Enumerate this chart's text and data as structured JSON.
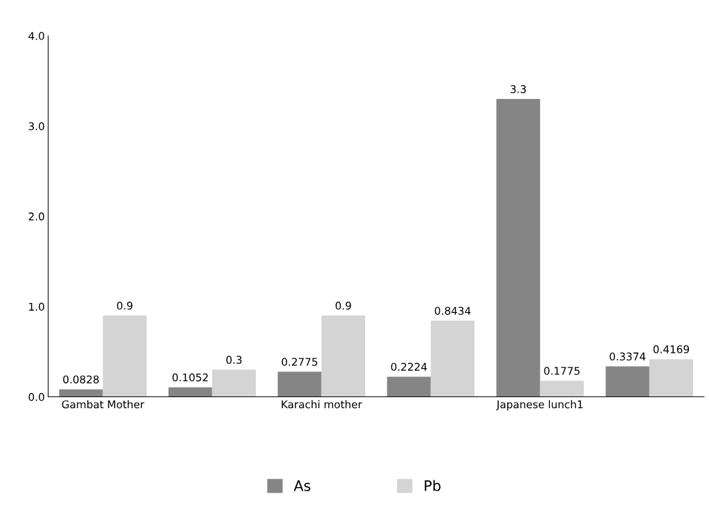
{
  "chart_data": {
    "type": "bar",
    "categories": [
      "Gambat Mother",
      null,
      "Karachi mother",
      null,
      "Japanese lunch1",
      null
    ],
    "series": [
      {
        "name": "As",
        "color": "#858585",
        "values": [
          0.0828,
          0.1052,
          0.2775,
          0.2224,
          3.3,
          0.3374
        ]
      },
      {
        "name": "Pb",
        "color": "#d4d4d4",
        "values": [
          0.9,
          0.3,
          0.9,
          0.8434,
          0.1775,
          0.4169
        ]
      }
    ],
    "ylim": [
      0,
      4
    ],
    "yticks": [
      {
        "value": 0,
        "label": "0.0"
      },
      {
        "value": 1,
        "label": "1.0"
      },
      {
        "value": 2,
        "label": "2.0"
      },
      {
        "value": 3,
        "label": "3.0"
      },
      {
        "value": 4,
        "label": "4.0"
      }
    ],
    "data_labels": true,
    "legend": "bottom",
    "grid": false
  }
}
